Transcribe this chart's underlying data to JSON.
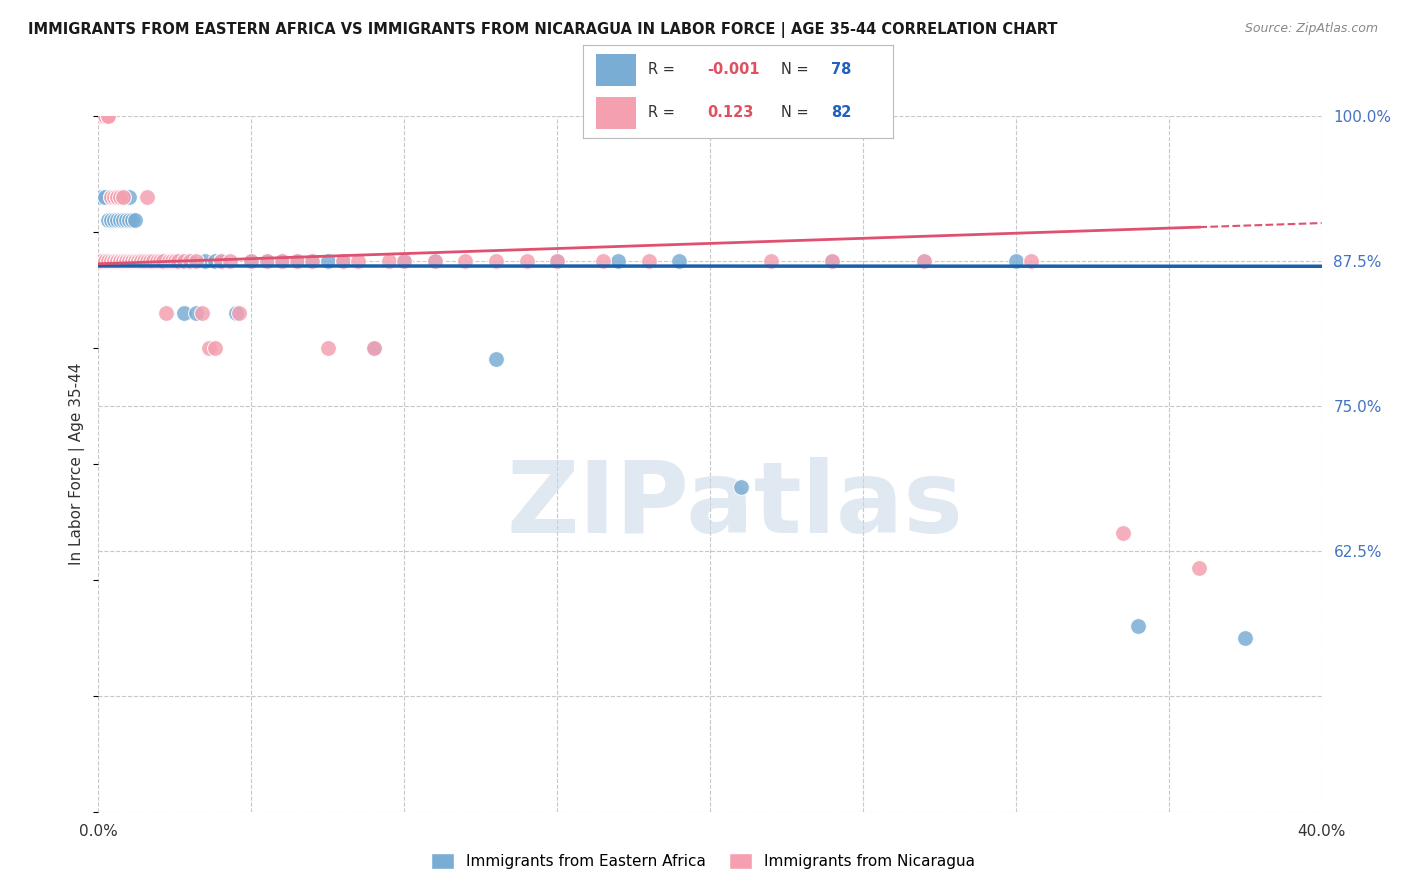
{
  "title": "IMMIGRANTS FROM EASTERN AFRICA VS IMMIGRANTS FROM NICARAGUA IN LABOR FORCE | AGE 35-44 CORRELATION CHART",
  "source": "Source: ZipAtlas.com",
  "ylabel": "In Labor Force | Age 35-44",
  "xlim": [
    0.0,
    0.4
  ],
  "ylim": [
    0.4,
    1.0
  ],
  "xticks": [
    0.0,
    0.05,
    0.1,
    0.15,
    0.2,
    0.25,
    0.3,
    0.35,
    0.4
  ],
  "xticklabels": [
    "0.0%",
    "",
    "",
    "",
    "",
    "",
    "",
    "",
    "40.0%"
  ],
  "yticks": [
    0.4,
    0.5,
    0.625,
    0.75,
    0.875,
    1.0
  ],
  "yticklabels": [
    "",
    "",
    "62.5%",
    "75.0%",
    "87.5%",
    "100.0%"
  ],
  "R_blue": -0.001,
  "N_blue": 78,
  "R_pink": 0.123,
  "N_pink": 82,
  "blue_color": "#7aadd4",
  "pink_color": "#f4a0b0",
  "blue_line_color": "#1a5fa8",
  "pink_line_color": "#e05070",
  "legend_R_color": "#e05060",
  "legend_N_color": "#2060c0",
  "blue_x": [
    0.001,
    0.001,
    0.002,
    0.002,
    0.003,
    0.003,
    0.003,
    0.004,
    0.004,
    0.004,
    0.005,
    0.005,
    0.005,
    0.005,
    0.006,
    0.006,
    0.006,
    0.006,
    0.007,
    0.007,
    0.007,
    0.007,
    0.008,
    0.008,
    0.008,
    0.009,
    0.009,
    0.01,
    0.01,
    0.01,
    0.011,
    0.011,
    0.012,
    0.012,
    0.013,
    0.013,
    0.014,
    0.015,
    0.015,
    0.016,
    0.016,
    0.017,
    0.018,
    0.019,
    0.02,
    0.021,
    0.022,
    0.023,
    0.025,
    0.026,
    0.027,
    0.028,
    0.03,
    0.032,
    0.035,
    0.038,
    0.04,
    0.045,
    0.05,
    0.055,
    0.06,
    0.065,
    0.07,
    0.075,
    0.08,
    0.09,
    0.1,
    0.11,
    0.13,
    0.15,
    0.17,
    0.19,
    0.21,
    0.24,
    0.27,
    0.3,
    0.34,
    0.375
  ],
  "blue_y": [
    0.875,
    0.93,
    0.875,
    0.93,
    0.875,
    0.91,
    0.875,
    0.93,
    0.91,
    0.875,
    0.93,
    0.91,
    0.875,
    0.875,
    0.93,
    0.91,
    0.875,
    0.875,
    0.93,
    0.91,
    0.875,
    0.875,
    0.93,
    0.91,
    0.875,
    0.91,
    0.875,
    0.93,
    0.91,
    0.875,
    0.91,
    0.875,
    0.91,
    0.875,
    0.875,
    0.875,
    0.875,
    0.875,
    0.875,
    0.875,
    0.875,
    0.875,
    0.875,
    0.875,
    0.875,
    0.875,
    0.875,
    0.875,
    0.875,
    0.875,
    0.875,
    0.83,
    0.875,
    0.83,
    0.875,
    0.875,
    0.875,
    0.83,
    0.875,
    0.875,
    0.875,
    0.875,
    0.875,
    0.875,
    0.875,
    0.8,
    0.875,
    0.875,
    0.79,
    0.875,
    0.875,
    0.875,
    0.68,
    0.875,
    0.875,
    0.875,
    0.56,
    0.55
  ],
  "pink_x": [
    0.001,
    0.001,
    0.002,
    0.002,
    0.002,
    0.003,
    0.003,
    0.003,
    0.004,
    0.004,
    0.005,
    0.005,
    0.005,
    0.006,
    0.006,
    0.006,
    0.006,
    0.007,
    0.007,
    0.007,
    0.008,
    0.008,
    0.008,
    0.009,
    0.009,
    0.01,
    0.01,
    0.011,
    0.011,
    0.012,
    0.012,
    0.013,
    0.013,
    0.014,
    0.014,
    0.015,
    0.016,
    0.016,
    0.017,
    0.018,
    0.019,
    0.02,
    0.021,
    0.022,
    0.023,
    0.024,
    0.025,
    0.026,
    0.028,
    0.03,
    0.032,
    0.034,
    0.036,
    0.038,
    0.04,
    0.043,
    0.046,
    0.05,
    0.055,
    0.06,
    0.065,
    0.07,
    0.075,
    0.08,
    0.085,
    0.09,
    0.095,
    0.1,
    0.11,
    0.12,
    0.13,
    0.14,
    0.15,
    0.165,
    0.18,
    0.2,
    0.22,
    0.24,
    0.27,
    0.305,
    0.335,
    0.36
  ],
  "pink_y": [
    0.875,
    1.0,
    1.0,
    0.875,
    1.0,
    1.0,
    1.0,
    0.875,
    0.93,
    0.875,
    0.93,
    0.875,
    0.875,
    0.93,
    0.93,
    0.875,
    0.875,
    0.93,
    0.875,
    0.875,
    0.93,
    0.875,
    0.875,
    0.875,
    0.875,
    0.875,
    0.875,
    0.875,
    0.875,
    0.875,
    0.875,
    0.875,
    0.875,
    0.875,
    0.875,
    0.875,
    0.93,
    0.875,
    0.875,
    0.875,
    0.875,
    0.875,
    0.875,
    0.83,
    0.875,
    0.875,
    0.875,
    0.875,
    0.875,
    0.875,
    0.875,
    0.83,
    0.8,
    0.8,
    0.875,
    0.875,
    0.83,
    0.875,
    0.875,
    0.875,
    0.875,
    0.875,
    0.8,
    0.875,
    0.875,
    0.8,
    0.875,
    0.875,
    0.875,
    0.875,
    0.875,
    0.875,
    0.875,
    0.875,
    0.875,
    1.0,
    0.875,
    0.875,
    0.875,
    0.875,
    0.64,
    0.61
  ],
  "watermark_text": "ZIPatlas",
  "background_color": "#ffffff",
  "grid_color": "#c8c8c8",
  "ytick_color": "#4472c4"
}
